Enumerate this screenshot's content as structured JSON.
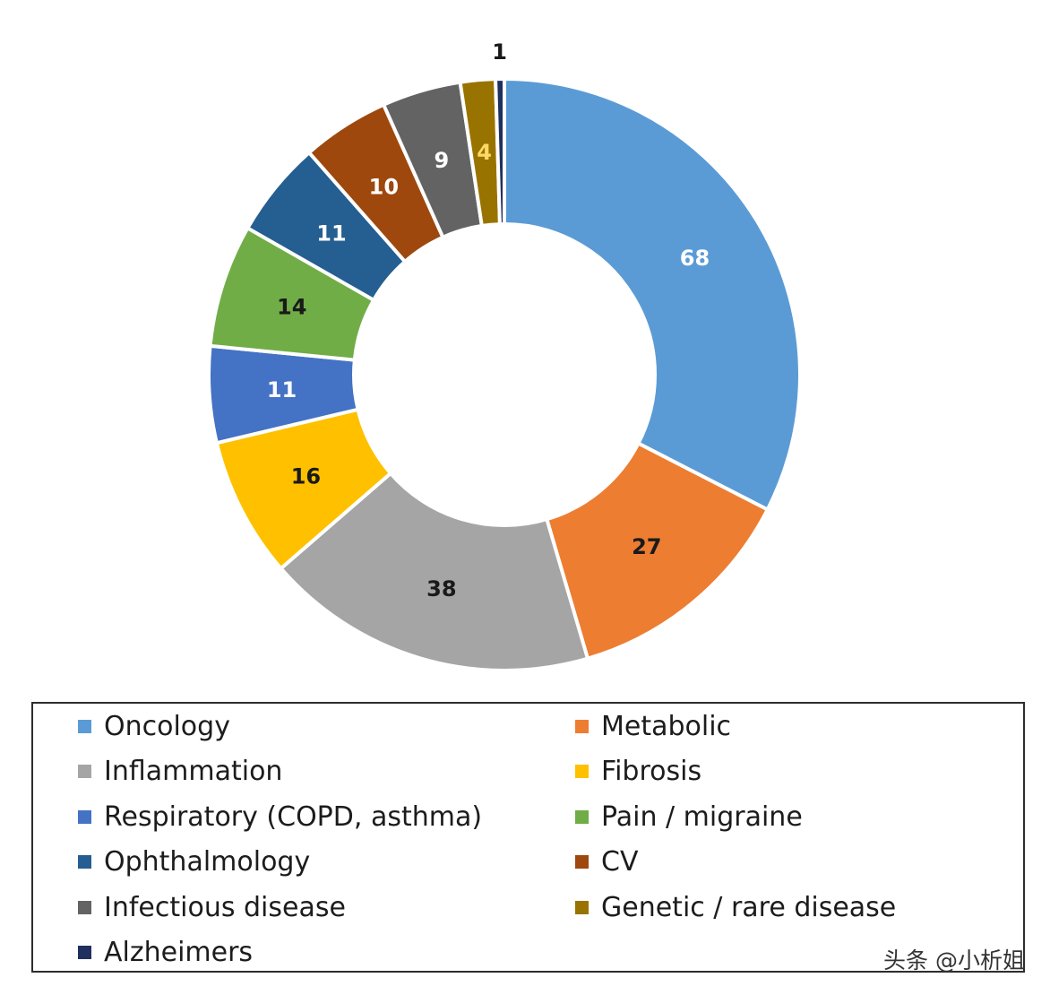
{
  "chart_data": {
    "type": "pie",
    "donut": true,
    "title": "",
    "categories": [
      "Oncology",
      "Metabolic",
      "Inflammation",
      "Fibrosis",
      "Respiratory (COPD, asthma)",
      "Pain / migraine",
      "Ophthalmology",
      "CV",
      "Infectious disease",
      "Genetic / rare disease",
      "Alzheimers"
    ],
    "values": [
      68,
      27,
      38,
      16,
      11,
      14,
      11,
      10,
      9,
      4,
      1
    ],
    "slice_order": [
      0,
      1,
      2,
      3,
      4,
      5,
      6,
      7,
      8,
      9,
      10
    ],
    "colors": [
      "#5b9bd5",
      "#ed7d31",
      "#a5a5a5",
      "#ffc000",
      "#4472c4",
      "#70ad47",
      "#255e91",
      "#9e480e",
      "#636363",
      "#997300",
      "#1f2f5e"
    ],
    "label_colors": [
      "#ffffff",
      "#1a1a1a",
      "#1a1a1a",
      "#1a1a1a",
      "#ffffff",
      "#1a1a1a",
      "#ffffff",
      "#ffffff",
      "#ffffff",
      "#ffd966",
      "#1a1a1a"
    ],
    "legend": {
      "placement": "bottom",
      "columns": 2
    }
  },
  "watermark": "头条 @小析姐"
}
